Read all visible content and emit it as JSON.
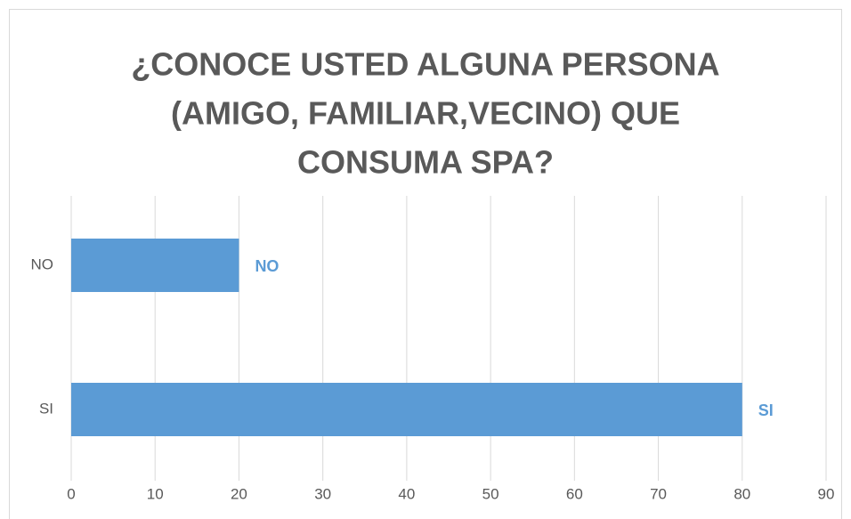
{
  "chart_data": {
    "type": "hbar",
    "title": [
      "¿CONOCE USTED ALGUNA PERSONA",
      "(AMIGO, FAMILIAR,VECINO) QUE",
      "CONSUMA SPA?"
    ],
    "categories": [
      "NO",
      "SI"
    ],
    "values": [
      20,
      80
    ],
    "color": "#5b9bd5",
    "xlim": [
      0,
      90
    ],
    "xticks": [
      0,
      10,
      20,
      30,
      40,
      50,
      60,
      70,
      80,
      90
    ],
    "grid": true
  }
}
